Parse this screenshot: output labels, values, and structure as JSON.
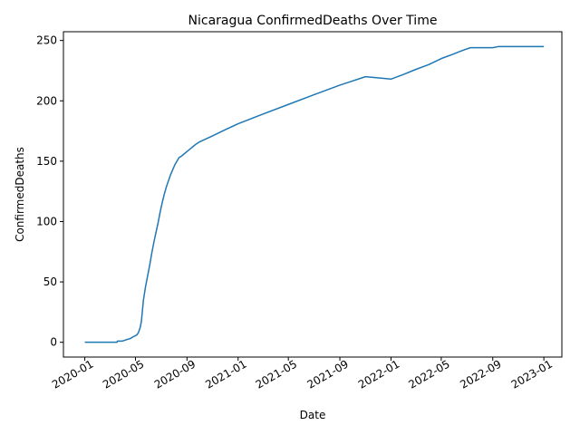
{
  "chart_data": {
    "type": "line",
    "title": "Nicaragua  ConfirmedDeaths Over Time",
    "xlabel": "Date",
    "ylabel": "ConfirmedDeaths",
    "xlim": [
      "2019-11-11",
      "2023-02-13"
    ],
    "ylim": [
      -12.25,
      257.25
    ],
    "grid": false,
    "line_color": "#1f77b4",
    "x_ticks": [
      "2020-01",
      "2020-05",
      "2020-09",
      "2021-01",
      "2021-05",
      "2021-09",
      "2022-01",
      "2022-05",
      "2022-09",
      "2023-01"
    ],
    "y_ticks": [
      0,
      50,
      100,
      150,
      200,
      250
    ],
    "series": [
      {
        "x": [
          "2020-01-01",
          "2020-03-18",
          "2020-03-19",
          "2020-03-31",
          "2020-04-08",
          "2020-04-18",
          "2020-04-28",
          "2020-05-04",
          "2020-05-08",
          "2020-05-12",
          "2020-05-15",
          "2020-05-20",
          "2020-05-25",
          "2020-05-30",
          "2020-06-04",
          "2020-06-09",
          "2020-06-14",
          "2020-06-19",
          "2020-06-24",
          "2020-06-29",
          "2020-07-04",
          "2020-07-09",
          "2020-07-14",
          "2020-07-19",
          "2020-07-24",
          "2020-07-29",
          "2020-08-03",
          "2020-08-08",
          "2020-08-13",
          "2020-08-18",
          "2020-08-25",
          "2020-09-01",
          "2020-09-08",
          "2020-09-15",
          "2020-09-22",
          "2020-10-01",
          "2020-11-01",
          "2020-12-01",
          "2021-01-01",
          "2021-03-01",
          "2021-05-01",
          "2021-07-01",
          "2021-09-01",
          "2021-11-01",
          "2022-01-01",
          "2022-02-01",
          "2022-03-01",
          "2022-04-01",
          "2022-05-01",
          "2022-06-01",
          "2022-06-15",
          "2022-07-01",
          "2022-07-10",
          "2022-08-01",
          "2022-09-01",
          "2022-09-15",
          "2022-10-01",
          "2022-11-01",
          "2022-12-01",
          "2023-01-01"
        ],
        "values": [
          0,
          0,
          1,
          1,
          2,
          3,
          5,
          6,
          8,
          12,
          17,
          35,
          46,
          55,
          64,
          74,
          83,
          91,
          99,
          108,
          116,
          123,
          129,
          134,
          139,
          143,
          147,
          150,
          153,
          154,
          156,
          158,
          160,
          162,
          164,
          166,
          171,
          176,
          181,
          189,
          197,
          205,
          213,
          220,
          218,
          222,
          226,
          230,
          235,
          239,
          241,
          243,
          244,
          244,
          244,
          245,
          245,
          245,
          245,
          245
        ]
      }
    ]
  }
}
